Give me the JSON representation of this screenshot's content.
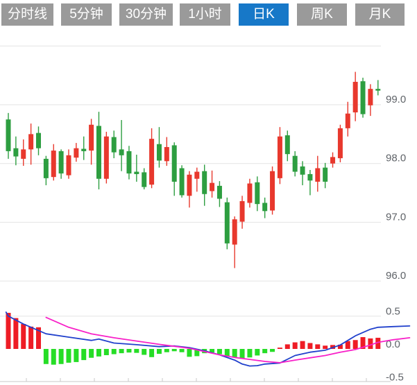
{
  "toolbar": {
    "tabs": [
      {
        "label": "分时线",
        "active": false
      },
      {
        "label": "5分钟",
        "active": false
      },
      {
        "label": "30分钟",
        "active": false
      },
      {
        "label": "1小时",
        "active": false
      },
      {
        "label": "日K",
        "active": true
      },
      {
        "label": "周K",
        "active": false
      },
      {
        "label": "月K",
        "active": false
      }
    ],
    "tab_bg": "#9a9a9a",
    "tab_active_bg": "#1778c8",
    "tab_text_color": "#ffffff"
  },
  "chart_data": {
    "type": "candlestick+macd",
    "legend_position": "none",
    "grid": true,
    "colors": {
      "up": "#e8382d",
      "down": "#2d9e40",
      "macd_up": "#ee1c25",
      "macd_down": "#26dd26",
      "dif_line": "#2040cc",
      "dea_line": "#f820c8",
      "gridline": "#e3e3e3",
      "axis_line": "#c8c8c8",
      "axis_label": "#5f6368"
    },
    "price_panel": {
      "ylim": [
        95.7,
        100.0
      ],
      "grid_values": [
        100.0,
        99.0,
        98.0,
        97.0,
        96.0
      ],
      "y_ticks": [
        {
          "value": 99.0,
          "label": "99.0"
        },
        {
          "value": 98.0,
          "label": "98.0"
        },
        {
          "value": 97.0,
          "label": "97.0"
        },
        {
          "value": 96.0,
          "label": "96.0"
        }
      ],
      "candles_ohlc": [
        [
          98.75,
          98.86,
          98.08,
          98.21
        ],
        [
          98.26,
          98.46,
          97.97,
          98.12
        ],
        [
          98.08,
          98.41,
          97.96,
          98.24
        ],
        [
          98.24,
          98.68,
          97.98,
          98.5
        ],
        [
          98.52,
          98.63,
          98.14,
          98.26
        ],
        [
          98.08,
          98.13,
          97.63,
          97.75
        ],
        [
          97.77,
          98.33,
          97.71,
          98.22
        ],
        [
          98.21,
          98.24,
          97.74,
          97.83
        ],
        [
          97.8,
          98.24,
          97.74,
          98.14
        ],
        [
          98.1,
          98.35,
          98.03,
          98.26
        ],
        [
          98.25,
          98.46,
          98.06,
          98.21
        ],
        [
          98.22,
          98.76,
          97.98,
          98.66
        ],
        [
          98.64,
          98.88,
          97.56,
          97.74
        ],
        [
          97.74,
          98.54,
          97.66,
          98.46
        ],
        [
          98.45,
          98.56,
          98.09,
          98.19
        ],
        [
          98.24,
          98.74,
          97.87,
          98.14
        ],
        [
          98.21,
          98.3,
          97.73,
          97.83
        ],
        [
          97.86,
          98.15,
          97.69,
          97.82
        ],
        [
          97.85,
          97.92,
          97.56,
          97.6
        ],
        [
          97.64,
          98.6,
          97.58,
          98.42
        ],
        [
          98.33,
          98.62,
          97.93,
          98.05
        ],
        [
          98.04,
          98.45,
          97.96,
          98.28
        ],
        [
          98.31,
          98.36,
          97.45,
          97.69
        ],
        [
          97.92,
          97.97,
          97.42,
          97.46
        ],
        [
          97.45,
          97.87,
          97.25,
          97.81
        ],
        [
          97.74,
          97.93,
          97.52,
          97.86
        ],
        [
          97.87,
          97.98,
          97.28,
          97.48
        ],
        [
          97.53,
          97.88,
          97.42,
          97.67
        ],
        [
          97.62,
          97.7,
          97.26,
          97.4
        ],
        [
          97.34,
          97.42,
          96.54,
          96.64
        ],
        [
          96.62,
          97.1,
          96.22,
          97.05
        ],
        [
          97.01,
          97.45,
          96.89,
          97.36
        ],
        [
          97.33,
          97.74,
          97.25,
          97.66
        ],
        [
          97.68,
          97.78,
          97.19,
          97.31
        ],
        [
          97.33,
          97.42,
          97.07,
          97.19
        ],
        [
          97.2,
          97.95,
          97.13,
          97.87
        ],
        [
          97.75,
          98.62,
          97.65,
          98.46
        ],
        [
          98.48,
          98.56,
          98.04,
          98.16
        ],
        [
          98.13,
          98.21,
          97.78,
          97.86
        ],
        [
          97.95,
          98.04,
          97.63,
          97.81
        ],
        [
          97.82,
          97.89,
          97.46,
          97.71
        ],
        [
          97.69,
          98.13,
          97.52,
          97.92
        ],
        [
          97.93,
          98.01,
          97.58,
          97.69
        ],
        [
          98.0,
          98.19,
          97.93,
          98.11
        ],
        [
          98.09,
          98.66,
          98.02,
          98.6
        ],
        [
          98.6,
          99.05,
          98.46,
          98.85
        ],
        [
          98.87,
          99.56,
          98.72,
          99.39
        ],
        [
          99.4,
          99.46,
          98.78,
          98.84
        ],
        [
          98.99,
          99.35,
          98.81,
          99.27
        ],
        [
          99.27,
          99.42,
          99.16,
          99.24
        ]
      ]
    },
    "macd_panel": {
      "ylim": [
        -0.5,
        0.5
      ],
      "grid_values": [
        0.5
      ],
      "y_ticks": [
        {
          "value": 0.5,
          "label": "0.5"
        },
        {
          "value": 0.0,
          "label": "0.0"
        },
        {
          "value": -0.5,
          "label": "-0.5"
        }
      ],
      "histogram": [
        0.55,
        0.47,
        0.38,
        0.34,
        0.33,
        -0.23,
        -0.24,
        -0.23,
        -0.21,
        -0.2,
        -0.17,
        -0.135,
        -0.115,
        -0.095,
        -0.08,
        -0.065,
        -0.055,
        -0.06,
        -0.09,
        -0.125,
        -0.075,
        -0.05,
        -0.035,
        -0.05,
        -0.12,
        -0.11,
        -0.065,
        -0.055,
        -0.08,
        -0.11,
        -0.13,
        -0.15,
        -0.13,
        -0.1,
        -0.065,
        -0.045,
        0.02,
        0.07,
        0.1,
        0.12,
        0.09,
        0.07,
        0.05,
        0.06,
        0.065,
        0.12,
        0.135,
        0.18,
        0.16,
        0.17
      ],
      "dif_points": [
        [
          -0.3,
          0.56
        ],
        [
          0,
          0.5
        ],
        [
          2,
          0.38
        ],
        [
          5,
          0.23
        ],
        [
          8,
          0.18
        ],
        [
          11,
          0.13
        ],
        [
          12,
          0.15
        ],
        [
          14,
          0.09
        ],
        [
          17,
          0.065
        ],
        [
          20,
          0.035
        ],
        [
          22,
          0.045
        ],
        [
          24,
          0.02
        ],
        [
          26,
          -0.03
        ],
        [
          28,
          -0.09
        ],
        [
          30,
          -0.17
        ],
        [
          31,
          -0.23
        ],
        [
          32,
          -0.26
        ],
        [
          33,
          -0.255
        ],
        [
          34,
          -0.23
        ],
        [
          36,
          -0.215
        ],
        [
          38,
          -0.1
        ],
        [
          40,
          -0.05
        ],
        [
          42,
          -0.02
        ],
        [
          44,
          0.06
        ],
        [
          46,
          0.2
        ],
        [
          48,
          0.3
        ],
        [
          49,
          0.33
        ],
        [
          51,
          0.34
        ],
        [
          53.2,
          0.35
        ]
      ],
      "dea_points": [
        [
          5,
          0.48
        ],
        [
          8,
          0.33
        ],
        [
          11,
          0.23
        ],
        [
          14,
          0.17
        ],
        [
          17,
          0.12
        ],
        [
          20,
          0.07
        ],
        [
          22,
          0.04
        ],
        [
          24,
          0.01
        ],
        [
          26,
          -0.04
        ],
        [
          28,
          -0.09
        ],
        [
          30,
          -0.13
        ],
        [
          32,
          -0.16
        ],
        [
          34,
          -0.19
        ],
        [
          36,
          -0.21
        ],
        [
          38,
          -0.17
        ],
        [
          40,
          -0.135
        ],
        [
          42,
          -0.1
        ],
        [
          44,
          -0.05
        ],
        [
          46,
          -0.01
        ],
        [
          48,
          0.06
        ],
        [
          49,
          0.1
        ],
        [
          51,
          0.14
        ],
        [
          53.2,
          0.17
        ]
      ]
    },
    "x_axis": {
      "tick_xs": [
        38,
        87,
        136,
        185,
        234,
        283,
        332,
        381,
        430,
        479,
        528
      ],
      "labels": []
    }
  }
}
